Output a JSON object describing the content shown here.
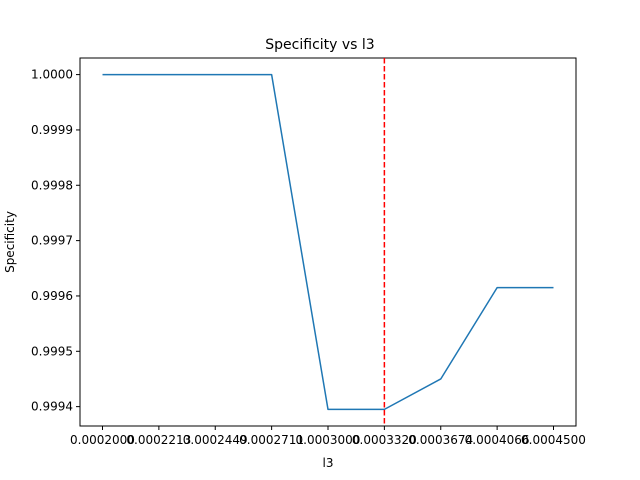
{
  "chart_data": {
    "type": "line",
    "title": "Specificity vs l3",
    "xlabel": "l3",
    "ylabel": "Specificity",
    "x_ticks": [
      "0.0002000",
      "0.0002213",
      "0.0002449",
      "0.0002711",
      "0.0003000",
      "0.0003320",
      "0.0003674",
      "0.0004066",
      "0.0004500"
    ],
    "y_ticks": [
      "0.9994",
      "0.9995",
      "0.9996",
      "0.9997",
      "0.9998",
      "0.9999",
      "1.0000"
    ],
    "series": [
      {
        "x": [
          "0.0002000",
          "0.0002213",
          "0.0002449",
          "0.0002711",
          "0.0003000",
          "0.0003320",
          "0.0003674",
          "0.0004066",
          "0.0004500"
        ],
        "values": [
          1.0,
          1.0,
          1.0,
          1.0,
          0.999395,
          0.999395,
          0.99945,
          0.999615,
          0.999615
        ],
        "color": "#1f77b4"
      }
    ],
    "reference_line": {
      "x": "0.0003320",
      "color": "#ff0000",
      "style": "dashed"
    },
    "ylim": [
      0.999365,
      1.00003
    ],
    "grid": false,
    "legend": "none"
  }
}
